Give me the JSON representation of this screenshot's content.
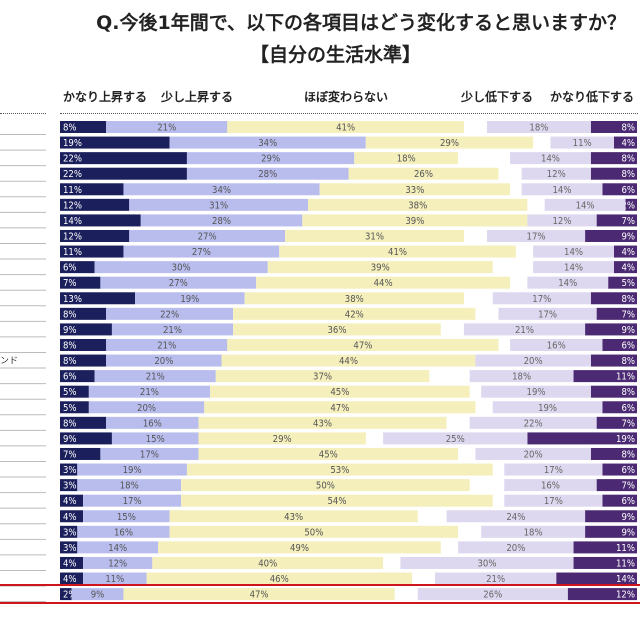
{
  "chart_data": {
    "type": "bar",
    "orientation": "horizontal-stacked",
    "title": "Q.今後1年間で、以下の各項目はどう変化すると思いますか？",
    "subtitle": "【自分の生活水準】",
    "legend": [
      "かなり上昇する",
      "少し上昇する",
      "ほぼ変わらない",
      "少し低下する",
      "かなり低下する"
    ],
    "legend_placement": "top",
    "colors": [
      "#1b1f5c",
      "#b9bdee",
      "#f4efbb",
      "#ddd8ef",
      "#4b2a73"
    ],
    "unit": "%",
    "row_labels": [
      "",
      "",
      "",
      "",
      "",
      "",
      "",
      "",
      "",
      "",
      "",
      "",
      "",
      "",
      "",
      "ンド",
      "",
      "",
      "",
      "",
      "",
      "",
      "",
      "",
      "",
      "",
      "",
      "",
      "",
      "",
      ""
    ],
    "series": [
      {
        "name": "かなり上昇する",
        "values": [
          8,
          19,
          22,
          22,
          11,
          12,
          14,
          12,
          11,
          6,
          7,
          13,
          8,
          9,
          8,
          8,
          6,
          5,
          5,
          8,
          9,
          7,
          3,
          3,
          4,
          4,
          3,
          3,
          4,
          4,
          2
        ]
      },
      {
        "name": "少し上昇する",
        "values": [
          21,
          34,
          29,
          28,
          34,
          31,
          28,
          27,
          27,
          30,
          27,
          19,
          22,
          21,
          21,
          20,
          21,
          21,
          20,
          16,
          15,
          17,
          19,
          18,
          17,
          15,
          16,
          14,
          12,
          11,
          9
        ]
      },
      {
        "name": "ほぼ変わらない",
        "values": [
          41,
          29,
          18,
          26,
          33,
          38,
          39,
          31,
          41,
          39,
          44,
          38,
          42,
          36,
          47,
          44,
          37,
          45,
          47,
          43,
          29,
          45,
          53,
          50,
          54,
          43,
          50,
          49,
          40,
          46,
          47
        ]
      },
      {
        "name": "少し低下する",
        "values": [
          18,
          11,
          14,
          12,
          14,
          14,
          12,
          17,
          14,
          14,
          14,
          17,
          17,
          21,
          16,
          20,
          18,
          19,
          19,
          22,
          25,
          20,
          17,
          16,
          17,
          24,
          18,
          20,
          30,
          21,
          26
        ]
      },
      {
        "name": "かなり低下する",
        "values": [
          8,
          4,
          8,
          8,
          6,
          2,
          7,
          9,
          4,
          4,
          5,
          8,
          7,
          9,
          6,
          8,
          11,
          8,
          6,
          7,
          19,
          8,
          6,
          7,
          6,
          9,
          9,
          11,
          11,
          14,
          12
        ]
      }
    ],
    "highlighted_row": 30,
    "highlight_color": "#d0141c"
  }
}
